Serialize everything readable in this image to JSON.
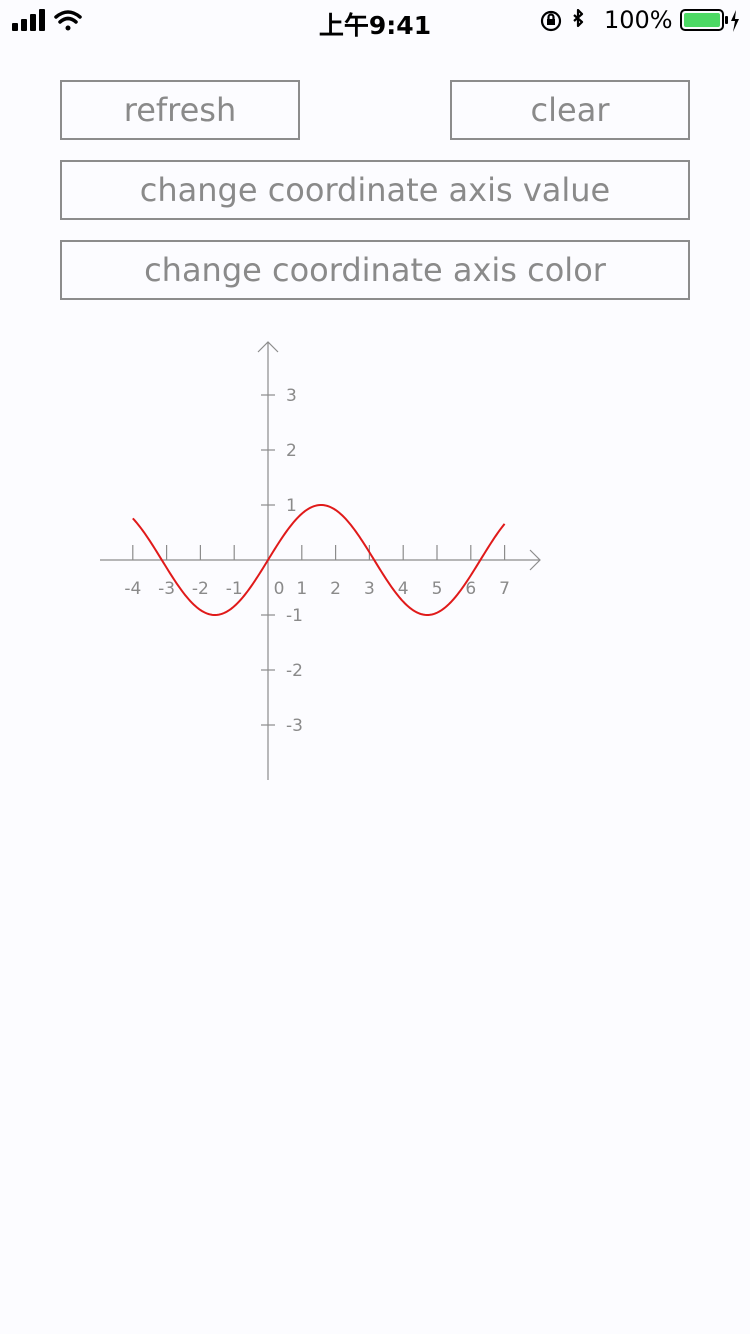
{
  "status_bar": {
    "time": "上午9:41",
    "battery_percent": "100%",
    "icons": [
      "signal-icon",
      "wifi-icon",
      "orientation-lock-icon",
      "bluetooth-icon",
      "battery-icon",
      "charging-icon"
    ]
  },
  "buttons": {
    "refresh": "refresh",
    "clear": "clear",
    "axis_value": "change coordinate axis value",
    "axis_color": "change coordinate axis color"
  },
  "colors": {
    "axis": "#8c8c8c",
    "curve": "#e01a1a",
    "battery": "#4cd964"
  },
  "chart_data": {
    "type": "line",
    "title": "",
    "xlabel": "",
    "ylabel": "",
    "function": "sin(x)",
    "xlim": [
      -4,
      7
    ],
    "ylim": [
      -3,
      3
    ],
    "x_ticks": [
      "-4",
      "-3",
      "-2",
      "-1",
      "0",
      "1",
      "2",
      "3",
      "4",
      "5",
      "6",
      "7"
    ],
    "y_ticks": [
      "3",
      "2",
      "1",
      "-1",
      "-2",
      "-3"
    ],
    "series": [
      {
        "x": [
          -4,
          -3.5,
          -3,
          -2.5,
          -2,
          -1.5,
          -1,
          -0.5,
          0,
          0.5,
          1,
          1.5,
          2,
          2.5,
          3,
          3.5,
          4,
          4.5,
          5,
          5.5,
          6,
          6.5,
          7
        ],
        "y": [
          0.757,
          0.351,
          -0.141,
          -0.598,
          -0.909,
          -0.997,
          -0.841,
          -0.479,
          0,
          0.479,
          0.841,
          0.997,
          0.909,
          0.598,
          0.141,
          -0.351,
          -0.757,
          -0.978,
          -0.959,
          -0.706,
          -0.279,
          0.215,
          0.657
        ]
      }
    ]
  }
}
